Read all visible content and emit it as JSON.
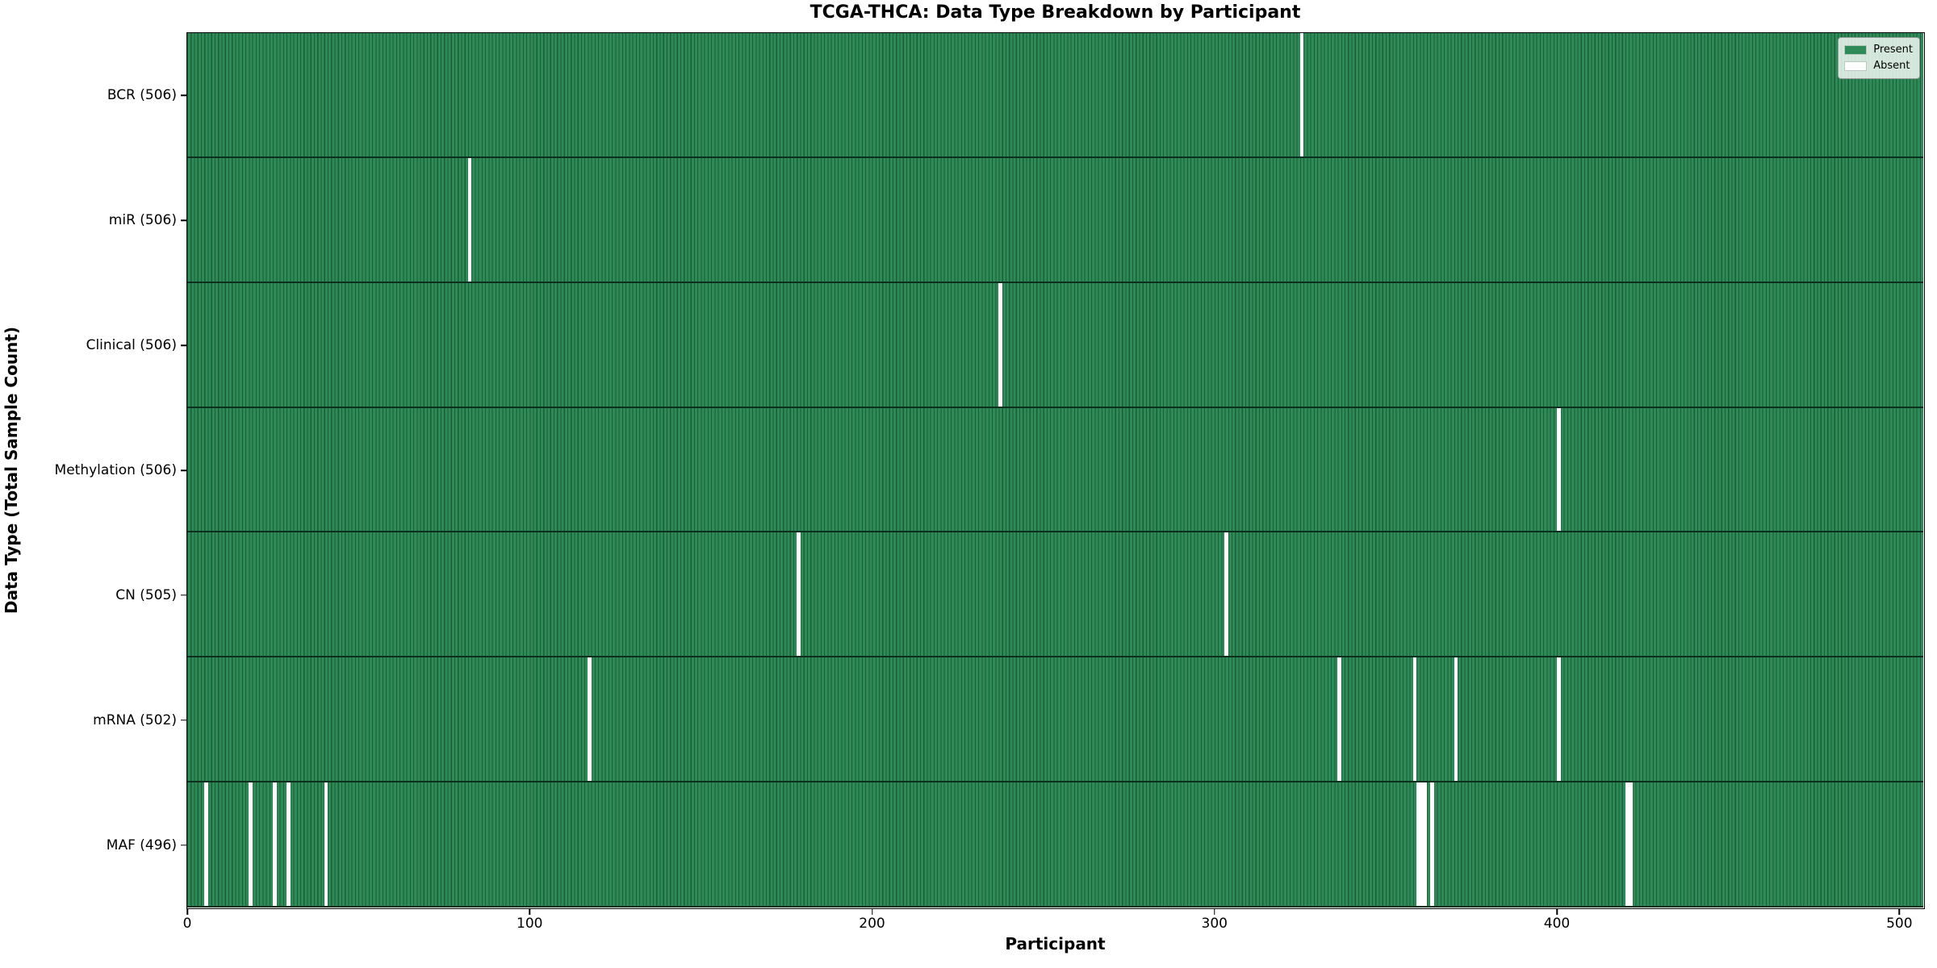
{
  "chart_data": {
    "type": "heatmap",
    "title": "TCGA-THCA: Data Type Breakdown by Participant",
    "xlabel": "Participant",
    "ylabel": "Data Type (Total Sample Count)",
    "n_participants": 507,
    "xlim": [
      0,
      507
    ],
    "x_ticks": [
      0,
      100,
      200,
      300,
      400,
      500
    ],
    "grid": false,
    "legend_position": "upper right",
    "legend_entries": [
      {
        "label": "Present",
        "color": "#2e8b57"
      },
      {
        "label": "Absent",
        "color": "#ffffff"
      }
    ],
    "colors": {
      "present_fill": "#2e8b57",
      "bar_edge": "#1b5e3a",
      "absent_fill": "#ffffff",
      "row_separator": "#0d2f1d"
    },
    "rows": [
      {
        "label": "BCR (506)",
        "data_type": "BCR",
        "present_count": 506,
        "absent_participants": [
          325
        ]
      },
      {
        "label": "miR (506)",
        "data_type": "miR",
        "present_count": 506,
        "absent_participants": [
          82
        ]
      },
      {
        "label": "Clinical (506)",
        "data_type": "Clinical",
        "present_count": 506,
        "absent_participants": [
          237
        ]
      },
      {
        "label": "Methylation (506)",
        "data_type": "Methylation",
        "present_count": 506,
        "absent_participants": [
          400
        ]
      },
      {
        "label": "CN (505)",
        "data_type": "CN",
        "present_count": 505,
        "absent_participants": [
          178,
          303
        ]
      },
      {
        "label": "mRNA (502)",
        "data_type": "mRNA",
        "present_count": 502,
        "absent_participants": [
          117,
          336,
          358,
          370,
          400
        ]
      },
      {
        "label": "MAF (496)",
        "data_type": "MAF",
        "present_count": 496,
        "absent_participants": [
          5,
          18,
          25,
          29,
          40,
          359,
          360,
          361,
          363,
          420,
          421
        ]
      }
    ]
  }
}
